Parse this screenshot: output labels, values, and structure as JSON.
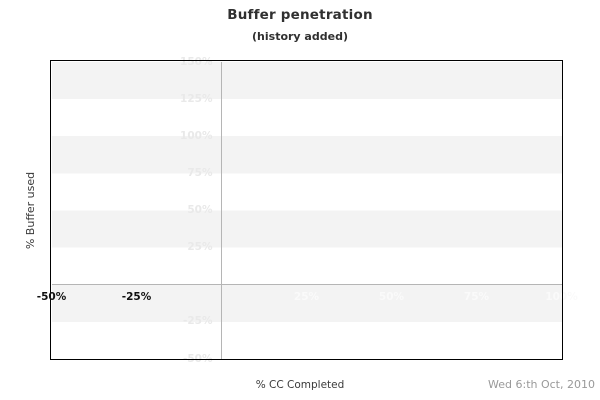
{
  "header": {
    "title": "Buffer penetration",
    "subtitle": "(history added)"
  },
  "footer": {
    "x_axis_title": "% CC Completed",
    "date_label": "Wed 6:th Oct, 2010"
  },
  "colors": {
    "band": "#f3f3f3",
    "plot_border": "#000000",
    "zero_line": "#b5b5b5",
    "light_tick": "#e9e9e9",
    "light_tick_on_band": "#fafafa",
    "dark_tick": "#111111",
    "title_text": "#303030",
    "axis_title_text": "#3a3a3a",
    "date_text": "#999999"
  },
  "chart_data": {
    "type": "line",
    "title": "Buffer penetration",
    "subtitle": "(history added)",
    "xlabel": "% CC Completed",
    "ylabel": "% Buffer used",
    "xlim": [
      -50,
      100
    ],
    "ylim": [
      -50,
      150
    ],
    "x_ticks": [
      {
        "value": -50,
        "label": "-50%",
        "emphasis": "dark"
      },
      {
        "value": -25,
        "label": "-25%",
        "emphasis": "dark"
      },
      {
        "value": 25,
        "label": "25%",
        "emphasis": "light"
      },
      {
        "value": 50,
        "label": "50%",
        "emphasis": "light"
      },
      {
        "value": 75,
        "label": "75%",
        "emphasis": "light"
      },
      {
        "value": 100,
        "label": "100%",
        "emphasis": "light"
      }
    ],
    "y_ticks": [
      {
        "value": 150,
        "label": "150%"
      },
      {
        "value": 125,
        "label": "125%"
      },
      {
        "value": 100,
        "label": "100%"
      },
      {
        "value": 75,
        "label": "75%"
      },
      {
        "value": 50,
        "label": "50%"
      },
      {
        "value": 25,
        "label": "25%"
      },
      {
        "value": -25,
        "label": "-25%"
      },
      {
        "value": -50,
        "label": "-50%"
      }
    ],
    "series": [],
    "grid": {
      "horizontal_band_step_percent": 25,
      "band_fill": "alternating gray/white starting gray at top",
      "zero_axis_lines": true
    },
    "legend": "none",
    "annotations": [
      {
        "text": "Wed 6:th Oct, 2010",
        "position": "bottom-right"
      }
    ]
  }
}
